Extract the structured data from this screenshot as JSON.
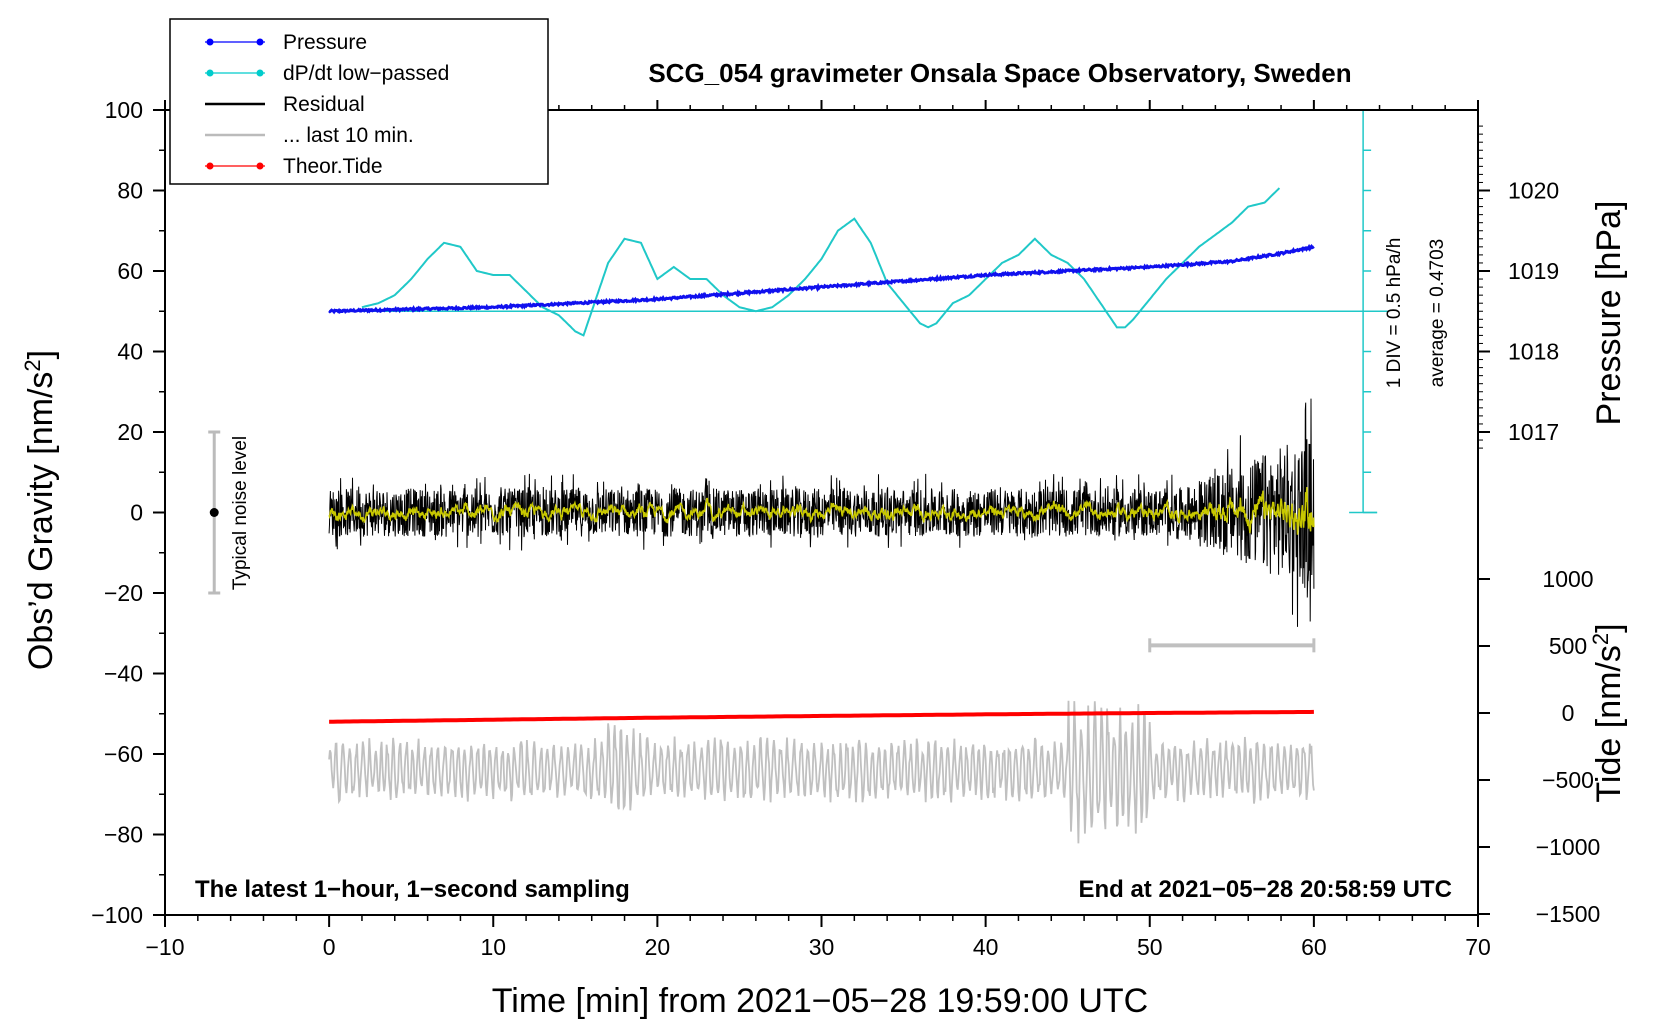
{
  "chart_data": {
    "type": "line",
    "title": "SCG_054 gravimeter Onsala Space Observatory, Sweden",
    "xlabel": "Time [min] from 2021−05−28 19:59:00 UTC",
    "ylabel_left": "Obs’d Gravity [nm/s",
    "ylabel_left_sup": "2",
    "ylabel_left_end": "]",
    "ylabel_right_pressure": "Pressure [hPa]",
    "ylabel_right_tide": "Tide [nm/s",
    "ylabel_right_tide_sup": "2",
    "ylabel_right_tide_end": "]",
    "xlim": [
      -10,
      70
    ],
    "ylim_left": [
      -100,
      100
    ],
    "x_ticks": [
      "−10",
      "0",
      "10",
      "20",
      "30",
      "40",
      "50",
      "60",
      "70"
    ],
    "y_left_ticks": [
      "100",
      "80",
      "60",
      "40",
      "20",
      "0",
      "−20",
      "−40",
      "−60",
      "−80",
      "−100"
    ],
    "pressure_ticks": [
      "1020",
      "1019",
      "1018",
      "1017"
    ],
    "pressure_tick_values": [
      1020,
      1019,
      1018,
      1017
    ],
    "tide_ticks": [
      "1000",
      "500",
      "0",
      "−500",
      "−1000",
      "−1500"
    ],
    "tide_tick_values": [
      1000,
      500,
      0,
      -500,
      -1000,
      -1500
    ],
    "legend": [
      {
        "label": "Pressure",
        "color": "#0000ff",
        "marker": true
      },
      {
        "label": "dP/dt low−passed",
        "color": "#00cccc",
        "marker": true
      },
      {
        "label": "Residual",
        "color": "#000000",
        "marker": false
      },
      {
        "label": "... last 10 min.",
        "color": "#bbbbbb",
        "marker": false
      },
      {
        "label": "Theor.Tide",
        "color": "#ff0000",
        "marker": true
      }
    ],
    "annotations": {
      "bottom_left": "The latest 1−hour, 1−second sampling",
      "bottom_right": "End at 2021−05−28 20:58:59 UTC",
      "noise_label": "Typical noise level",
      "div_label": "1 DIV = 0.5 hPa/h",
      "average_label": "average = 0.4703"
    },
    "series": [
      {
        "name": "Pressure",
        "color": "#1010ee",
        "unit": "hPa",
        "x": [
          0,
          10,
          20,
          30,
          40,
          50,
          55,
          58,
          60
        ],
        "values": [
          1018.5,
          1018.55,
          1018.65,
          1018.8,
          1018.95,
          1019.05,
          1019.12,
          1019.22,
          1019.3
        ]
      },
      {
        "name": "dP/dt low-passed",
        "color": "#20c8c8",
        "unit": "nm/s2 scale",
        "x": [
          2,
          3,
          4,
          5,
          6,
          7,
          8,
          9,
          10,
          11,
          12,
          13,
          14,
          15,
          15.5,
          16,
          17,
          18,
          19,
          20,
          21,
          22,
          23,
          24,
          25,
          26,
          27,
          28,
          29,
          30,
          31,
          32,
          33,
          34,
          35,
          36,
          36.5,
          37,
          38,
          39,
          40,
          41,
          42,
          43,
          44,
          45,
          46,
          47,
          48,
          48.5,
          49,
          50,
          51,
          52,
          53,
          54,
          55,
          56,
          57,
          58
        ],
        "values": [
          51,
          52,
          54,
          58,
          63,
          67,
          66,
          60,
          59,
          59,
          55,
          51,
          49,
          45,
          44,
          50,
          62,
          68,
          67,
          58,
          61,
          58,
          58,
          54,
          51,
          50,
          51,
          54,
          58,
          63,
          70,
          73,
          67,
          57,
          52,
          47,
          46,
          47,
          52,
          54,
          58,
          62,
          64,
          68,
          64,
          62,
          58,
          52,
          46,
          46,
          48,
          53,
          58,
          62,
          66,
          69,
          72,
          76,
          77,
          81
        ]
      },
      {
        "name": "Residual",
        "color": "#000000",
        "x_range": [
          0,
          60
        ],
        "amplitude": 6,
        "late_amplitude": 20
      },
      {
        "name": "Residual smoothed",
        "color": "#c8c800",
        "x_range": [
          0,
          60
        ],
        "amplitude": 1.5
      },
      {
        "name": "last 10 min.",
        "color": "#c0c0c0",
        "x_range": [
          0,
          60
        ],
        "center": -64,
        "amplitude": 6,
        "bar_x": [
          50,
          60
        ],
        "bar_y": -33
      },
      {
        "name": "Theor.Tide",
        "color": "#ff0000",
        "unit": "nm/s2",
        "x": [
          0,
          10,
          20,
          30,
          40,
          50,
          60
        ],
        "values": [
          -65,
          -50,
          -35,
          -22,
          -10,
          0,
          8
        ]
      }
    ],
    "noise_bar": {
      "x": -7,
      "y": [
        -20,
        20
      ],
      "center": 0
    },
    "pressure_div_axis": {
      "x": 63,
      "y_top": 100,
      "y_bottom": 0,
      "divisions": 10
    }
  }
}
